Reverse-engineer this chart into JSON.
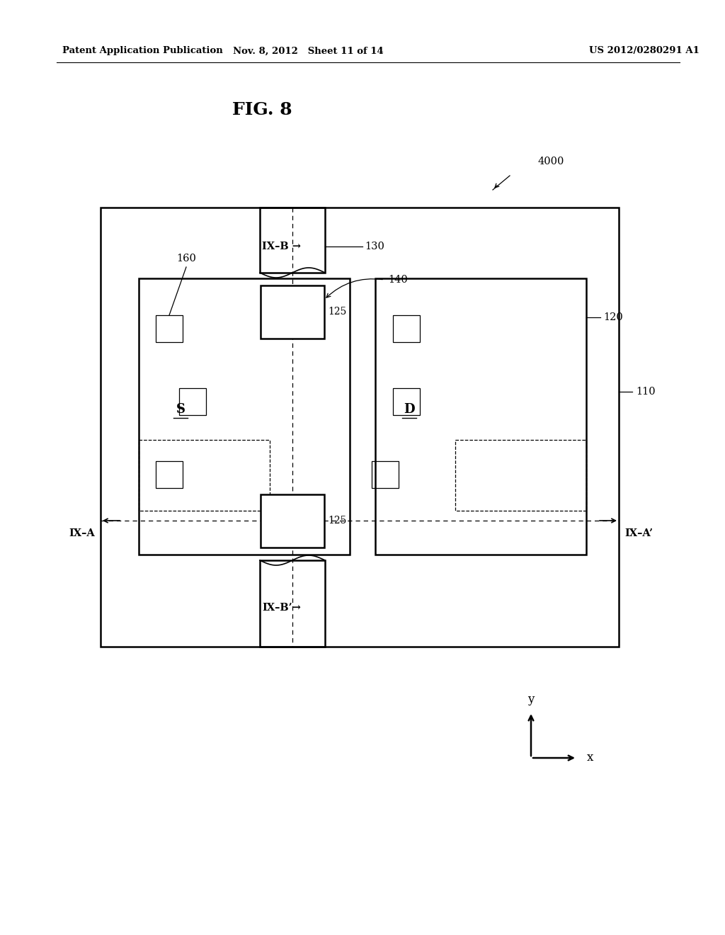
{
  "bg_color": "#ffffff",
  "header_left": "Patent Application Publication",
  "header_mid": "Nov. 8, 2012   Sheet 11 of 14",
  "header_right": "US 2012/0280291 A1",
  "fig_label": "FIG. 8",
  "ref_4000": "4000",
  "ref_110": "110",
  "ref_120": "120",
  "ref_125": "125",
  "ref_130": "130",
  "ref_140": "140",
  "ref_160": "160",
  "label_S": "S",
  "label_D": "D",
  "label_IXA": "IX–A",
  "label_IXAp": "IX–A’",
  "label_IXB": "IX–B",
  "label_IXBp": "IX–B’"
}
